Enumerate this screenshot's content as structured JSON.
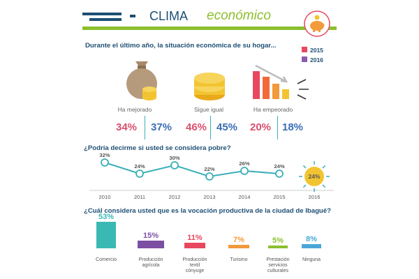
{
  "header": {
    "title_main": "CLIMA",
    "title_accent": "económico",
    "brand_dark": "#1d4f74",
    "brand_green": "#8cbf2e",
    "icon": "piggy-bank-icon"
  },
  "section1": {
    "question": "Durante el último año, la situación económica de su hogar...",
    "legend": [
      {
        "label": "2015",
        "color": "#e8475f"
      },
      {
        "label": "2016",
        "color": "#8a5cae"
      }
    ],
    "options": [
      {
        "label": "Ha mejorado",
        "icon": "money-bag-icon",
        "v2015": "34%",
        "v2016": "37%"
      },
      {
        "label": "Sigue igual",
        "icon": "coins-stack-icon",
        "v2015": "46%",
        "v2016": "45%"
      },
      {
        "label": "Ha empeorado",
        "icon": "declining-bars-icon",
        "v2015": "20%",
        "v2016": "18%"
      }
    ]
  },
  "section2": {
    "question": "¿Podría decirme si usted se considera pobre?",
    "highlight_label": "24%"
  },
  "section3": {
    "question": "¿Cuál considera usted que es la vocación productiva de la ciudad de Ibagué?"
  },
  "chart_data": [
    {
      "type": "line",
      "x": [
        "2010",
        "2011",
        "2012",
        "2013",
        "2014",
        "2015",
        "2016"
      ],
      "series": [
        {
          "values": [
            32,
            24,
            30,
            22,
            26,
            24,
            24
          ],
          "labels": [
            "32%",
            "24%",
            "30%",
            "22%",
            "26%",
            "24%",
            "24%"
          ]
        }
      ],
      "highlight_index": 6,
      "colors": {
        "line": "#3aaeb8",
        "highlight": "#f3c431"
      }
    },
    {
      "type": "bar",
      "categories": [
        "Comercio",
        "Producción agrícola",
        "Producción textil cónyuge",
        "Turismo",
        "Prestación servicios culturales",
        "Ninguna"
      ],
      "category_lines": [
        [
          "Comercio"
        ],
        [
          "Producción",
          "agrícola"
        ],
        [
          "Producción",
          "textil",
          "cónyuge"
        ],
        [
          "Turismo"
        ],
        [
          "Prestación",
          "servicios",
          "culturales"
        ],
        [
          "Ninguna"
        ]
      ],
      "values": [
        53,
        15,
        11,
        7,
        5,
        8
      ],
      "labels": [
        "53%",
        "15%",
        "11%",
        "7%",
        "5%",
        "8%"
      ],
      "colors": [
        "#3ab8b4",
        "#7c4fa3",
        "#e8475f",
        "#f39a3a",
        "#8cbf2e",
        "#4aa6d8"
      ]
    }
  ]
}
